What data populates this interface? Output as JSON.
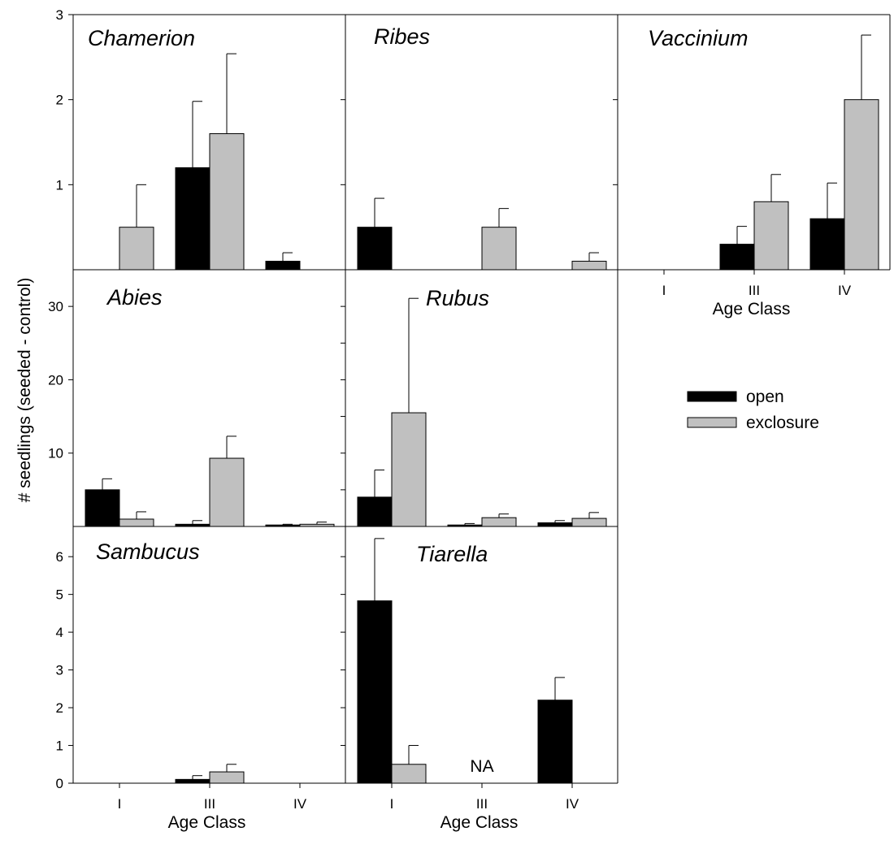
{
  "chart_data": {
    "type": "bar",
    "ylabel": "# seedlings (seeded - control)",
    "xlabel": "Age Class",
    "categories": [
      "I",
      "III",
      "IV"
    ],
    "legend": {
      "placement": "right",
      "entries": [
        {
          "name": "open",
          "color": "#000000"
        },
        {
          "name": "exclosure",
          "color": "#c0c0c0"
        }
      ]
    },
    "series_colors": {
      "open": "#000000",
      "exclosure": "#c0c0c0"
    },
    "panels": [
      {
        "id": "chamerion",
        "title": "Chamerion",
        "ylim": [
          0,
          3
        ],
        "yticks": [
          1,
          2,
          3
        ],
        "ytick_labels": [
          "1",
          "2",
          "3"
        ],
        "series": [
          {
            "name": "open",
            "values": [
              0,
              1.2,
              0.1
            ],
            "errors": [
              0,
              0.78,
              0.1
            ]
          },
          {
            "name": "exclosure",
            "values": [
              0.5,
              1.6,
              0
            ],
            "errors": [
              0.5,
              0.94,
              0
            ]
          }
        ]
      },
      {
        "id": "ribes",
        "title": "Ribes",
        "ylim": [
          0,
          3
        ],
        "yticks": [
          1,
          2,
          3
        ],
        "ytick_labels": [],
        "series": [
          {
            "name": "open",
            "values": [
              0.5,
              0,
              0
            ],
            "errors": [
              0.34,
              0,
              0
            ]
          },
          {
            "name": "exclosure",
            "values": [
              0,
              0.5,
              0.1
            ],
            "errors": [
              0,
              0.22,
              0.1
            ]
          }
        ]
      },
      {
        "id": "vaccinium",
        "title": "Vaccinium",
        "ylim": [
          0,
          3
        ],
        "yticks": [
          1,
          2,
          3
        ],
        "ytick_labels": [],
        "series": [
          {
            "name": "open",
            "values": [
              0,
              0.3,
              0.6
            ],
            "errors": [
              0,
              0.21,
              0.42
            ]
          },
          {
            "name": "exclosure",
            "values": [
              0,
              0.8,
              2.0
            ],
            "errors": [
              0,
              0.32,
              0.76
            ]
          }
        ]
      },
      {
        "id": "abies",
        "title": "Abies",
        "ylim": [
          0,
          35
        ],
        "yticks": [
          10,
          20,
          30
        ],
        "ytick_labels": [
          "10",
          "20",
          "30"
        ],
        "series": [
          {
            "name": "open",
            "values": [
              5.0,
              0.3,
              0.2
            ],
            "errors": [
              1.5,
              0.5,
              0.1
            ]
          },
          {
            "name": "exclosure",
            "values": [
              1.0,
              9.3,
              0.3
            ],
            "errors": [
              1.0,
              3.0,
              0.3
            ]
          }
        ]
      },
      {
        "id": "rubus",
        "title": "Rubus",
        "ylim": [
          0,
          35
        ],
        "yticks": [
          5,
          10,
          15,
          20,
          25,
          30
        ],
        "ytick_labels": [],
        "series": [
          {
            "name": "open",
            "values": [
              4.0,
              0.2,
              0.5
            ],
            "errors": [
              3.7,
              0.2,
              0.3
            ]
          },
          {
            "name": "exclosure",
            "values": [
              15.5,
              1.2,
              1.1
            ],
            "errors": [
              15.6,
              0.5,
              0.8
            ]
          }
        ]
      },
      {
        "id": "sambucus",
        "title": "Sambucus",
        "ylim": [
          0,
          6.8
        ],
        "yticks": [
          0,
          1,
          2,
          3,
          4,
          5,
          6
        ],
        "ytick_labels": [
          "0",
          "1",
          "2",
          "3",
          "4",
          "5",
          "6"
        ],
        "series": [
          {
            "name": "open",
            "values": [
              0,
              0.1,
              0
            ],
            "errors": [
              0,
              0.1,
              0
            ]
          },
          {
            "name": "exclosure",
            "values": [
              0,
              0.3,
              0
            ],
            "errors": [
              0,
              0.2,
              0
            ]
          }
        ]
      },
      {
        "id": "tiarella",
        "title": "Tiarella",
        "ylim": [
          0,
          6.8
        ],
        "yticks": [
          0,
          1,
          2,
          3,
          4,
          5,
          6
        ],
        "ytick_labels": [],
        "annotation": "NA",
        "series": [
          {
            "name": "open",
            "values": [
              4.83,
              0,
              2.2
            ],
            "errors": [
              1.65,
              0,
              0.6
            ]
          },
          {
            "name": "exclosure",
            "values": [
              0.5,
              0,
              0
            ],
            "errors": [
              0.5,
              0,
              0
            ]
          }
        ]
      }
    ]
  }
}
